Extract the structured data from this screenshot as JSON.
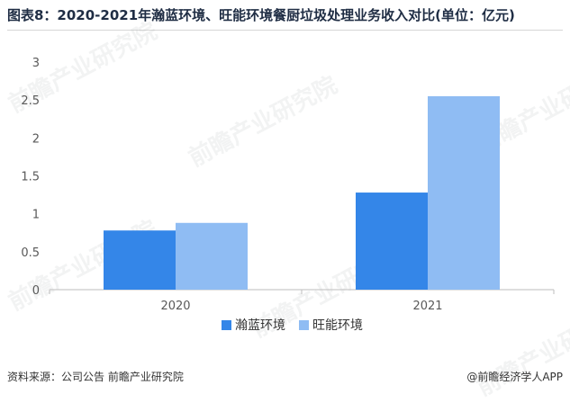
{
  "title": "图表8：2020-2021年瀚蓝环境、旺能环境餐厨垃圾处理业务收入对比(单位：亿元)",
  "footer": {
    "source": "资料来源：公司公告 前瞻产业研究院",
    "credit": "@前瞻经济学人APP"
  },
  "watermark": "前瞻产业研究院",
  "colors": {
    "series1": "#3486e8",
    "series2": "#8fbcf3",
    "axis": "#bdbdbd",
    "text": "#595959"
  },
  "chart_data": {
    "type": "bar",
    "categories": [
      "2020",
      "2021"
    ],
    "series": [
      {
        "name": "瀚蓝环境",
        "values": [
          0.78,
          1.28
        ]
      },
      {
        "name": "旺能环境",
        "values": [
          0.88,
          2.55
        ]
      }
    ],
    "yticks": [
      "0",
      "0.5",
      "1",
      "1.5",
      "2",
      "2.5",
      "3"
    ],
    "ylim": [
      0,
      3
    ],
    "grid": false,
    "legend": "bottom"
  }
}
